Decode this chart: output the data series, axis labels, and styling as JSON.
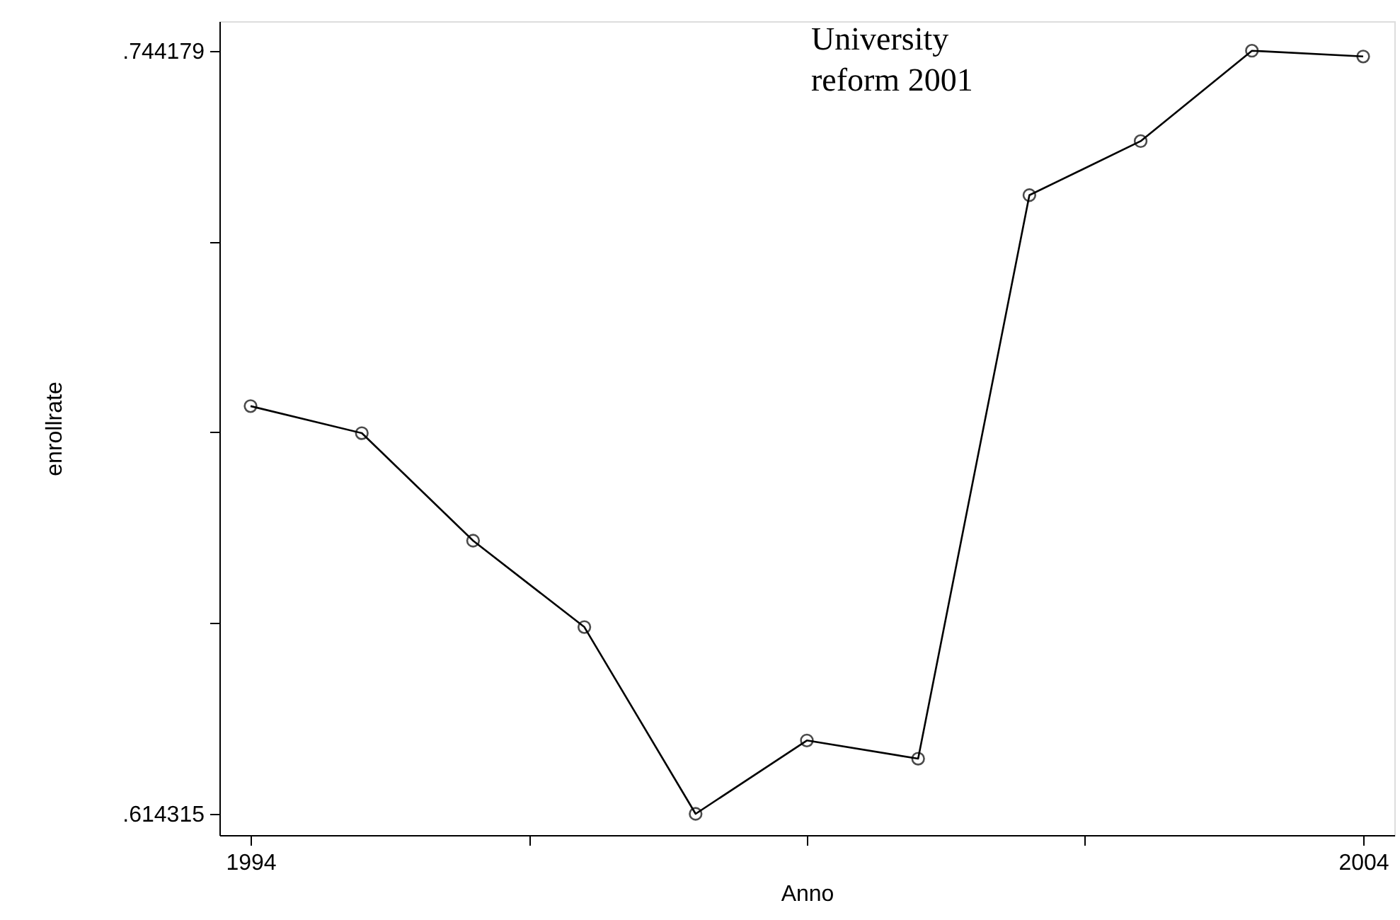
{
  "chart_data": {
    "type": "line",
    "xlabel": "Anno",
    "ylabel": "enrollrate",
    "x": [
      1994,
      1995,
      1996,
      1997,
      1998,
      1999,
      2000,
      2001,
      2002,
      2003,
      2004
    ],
    "values": [
      0.6837,
      0.6791,
      0.6608,
      0.6461,
      0.614315,
      0.6268,
      0.6237,
      0.7196,
      0.7288,
      0.744179,
      0.7432
    ],
    "color": "#000000",
    "marker": "circle",
    "line_style": "solid",
    "grid": false,
    "xlim": [
      1993.72,
      2004.28
    ],
    "ylim": [
      0.6107,
      0.7492
    ],
    "xticks": [
      {
        "value": 1994,
        "label": "1994"
      },
      {
        "value": 1996.5,
        "label": null
      },
      {
        "value": 1999,
        "label": null
      },
      {
        "value": 2001.5,
        "label": null
      },
      {
        "value": 2004,
        "label": "2004"
      }
    ],
    "yticks": [
      {
        "value": 0.614315,
        "label": ".614315"
      },
      {
        "value": 0.646781,
        "label": null
      },
      {
        "value": 0.679247,
        "label": null
      },
      {
        "value": 0.711713,
        "label": null
      },
      {
        "value": 0.744179,
        "label": ".744179"
      }
    ],
    "annotations": [
      "University\nreform 2001"
    ]
  }
}
